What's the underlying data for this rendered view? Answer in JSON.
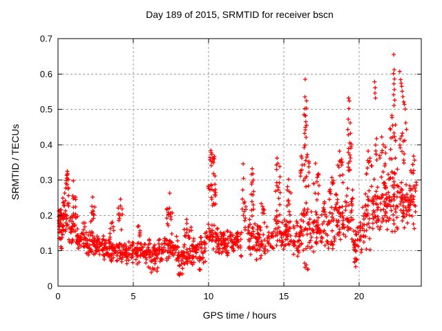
{
  "chart_data": {
    "type": "scatter",
    "title": "Day 189 of 2015, SRMTID for receiver bscn",
    "xlabel": "GPS time / hours",
    "ylabel": "SRMTID / TECUs",
    "xlim": [
      0,
      24.13
    ],
    "ylim": [
      0,
      0.7
    ],
    "xticks": [
      0,
      5,
      10,
      15,
      20
    ],
    "yticks": [
      0,
      0.1,
      0.2,
      0.3,
      0.4,
      0.5,
      0.6,
      0.7
    ],
    "grid": true,
    "legend_position": "none",
    "marker": "plus",
    "marker_color": "#ff0000",
    "axis_color": "#000000",
    "grid_color": "#999999",
    "background_color": "#ffffff",
    "seed": 20150189,
    "band_segments": [
      [
        0.0,
        0.35,
        0.09,
        0.22,
        26
      ],
      [
        0.05,
        0.5,
        0.13,
        0.27,
        20
      ],
      [
        0.3,
        0.8,
        0.12,
        0.3,
        28
      ],
      [
        0.5,
        0.72,
        0.26,
        0.325,
        9
      ],
      [
        0.8,
        1.3,
        0.1,
        0.22,
        34
      ],
      [
        0.95,
        1.2,
        0.19,
        0.27,
        9
      ],
      [
        1.3,
        1.8,
        0.09,
        0.19,
        30
      ],
      [
        1.8,
        2.5,
        0.08,
        0.16,
        40
      ],
      [
        2.15,
        2.45,
        0.15,
        0.25,
        12
      ],
      [
        2.5,
        3.2,
        0.07,
        0.15,
        44
      ],
      [
        3.2,
        4.0,
        0.065,
        0.14,
        48
      ],
      [
        3.45,
        3.7,
        0.13,
        0.2,
        7
      ],
      [
        4.0,
        4.3,
        0.14,
        0.245,
        10
      ],
      [
        4.0,
        5.0,
        0.058,
        0.13,
        55
      ],
      [
        5.0,
        6.0,
        0.06,
        0.13,
        55
      ],
      [
        5.25,
        5.5,
        0.125,
        0.185,
        6
      ],
      [
        6.0,
        7.0,
        0.058,
        0.135,
        55
      ],
      [
        6.0,
        6.8,
        0.035,
        0.058,
        8
      ],
      [
        7.0,
        8.0,
        0.065,
        0.15,
        55
      ],
      [
        7.2,
        7.6,
        0.14,
        0.25,
        14
      ],
      [
        8.0,
        9.0,
        0.045,
        0.125,
        55
      ],
      [
        8.35,
        8.9,
        0.12,
        0.2,
        13
      ],
      [
        7.9,
        8.6,
        0.025,
        0.045,
        6
      ],
      [
        9.0,
        9.8,
        0.055,
        0.15,
        45
      ],
      [
        9.3,
        9.55,
        0.038,
        0.055,
        4
      ],
      [
        9.8,
        10.6,
        0.09,
        0.2,
        40
      ],
      [
        9.95,
        10.5,
        0.19,
        0.335,
        22
      ],
      [
        10.05,
        10.42,
        0.33,
        0.385,
        10
      ],
      [
        10.6,
        11.5,
        0.07,
        0.165,
        52
      ],
      [
        11.5,
        12.2,
        0.07,
        0.17,
        42
      ],
      [
        12.2,
        12.6,
        0.14,
        0.26,
        12
      ],
      [
        12.6,
        13.1,
        0.08,
        0.2,
        30
      ],
      [
        12.75,
        13.05,
        0.19,
        0.33,
        12
      ],
      [
        13.1,
        14.3,
        0.07,
        0.185,
        62
      ],
      [
        13.45,
        13.7,
        0.18,
        0.25,
        7
      ],
      [
        14.3,
        14.85,
        0.09,
        0.22,
        26
      ],
      [
        14.45,
        14.78,
        0.21,
        0.355,
        12
      ],
      [
        14.85,
        15.6,
        0.09,
        0.21,
        40
      ],
      [
        15.15,
        15.5,
        0.2,
        0.3,
        9
      ],
      [
        15.6,
        16.05,
        0.08,
        0.185,
        22
      ],
      [
        16.0,
        16.85,
        0.08,
        0.25,
        46
      ],
      [
        16.1,
        16.7,
        0.24,
        0.42,
        20
      ],
      [
        16.3,
        16.58,
        0.42,
        0.545,
        8
      ],
      [
        16.38,
        16.62,
        0.04,
        0.068,
        5
      ],
      [
        16.85,
        17.6,
        0.09,
        0.225,
        40
      ],
      [
        16.95,
        17.35,
        0.22,
        0.345,
        11
      ],
      [
        17.6,
        18.4,
        0.1,
        0.25,
        42
      ],
      [
        17.95,
        18.35,
        0.24,
        0.335,
        9
      ],
      [
        18.4,
        19.2,
        0.1,
        0.28,
        46
      ],
      [
        18.55,
        18.95,
        0.27,
        0.385,
        10
      ],
      [
        19.2,
        19.6,
        0.12,
        0.3,
        24
      ],
      [
        19.25,
        19.5,
        0.29,
        0.475,
        14
      ],
      [
        19.6,
        20.2,
        0.08,
        0.21,
        32
      ],
      [
        19.65,
        20.05,
        0.05,
        0.085,
        8
      ],
      [
        20.2,
        21.0,
        0.1,
        0.3,
        46
      ],
      [
        20.4,
        20.85,
        0.29,
        0.385,
        9
      ],
      [
        21.0,
        21.8,
        0.13,
        0.33,
        50
      ],
      [
        21.0,
        21.18,
        0.33,
        0.46,
        6
      ],
      [
        21.35,
        21.8,
        0.32,
        0.425,
        9
      ],
      [
        21.8,
        22.6,
        0.14,
        0.35,
        56
      ],
      [
        22.0,
        22.45,
        0.34,
        0.52,
        16
      ],
      [
        22.6,
        23.3,
        0.15,
        0.33,
        42
      ],
      [
        22.65,
        23.05,
        0.33,
        0.48,
        11
      ],
      [
        23.2,
        23.85,
        0.15,
        0.31,
        30
      ],
      [
        23.25,
        23.8,
        0.3,
        0.375,
        8
      ]
    ],
    "feature_points": [
      0.62,
      0.325,
      0.58,
      0.313,
      0.66,
      0.302,
      0.6,
      0.287,
      0.69,
      0.278,
      1.02,
      0.298,
      2.3,
      0.252,
      4.15,
      0.246,
      7.42,
      0.263,
      10.15,
      0.384,
      10.22,
      0.373,
      10.27,
      0.362,
      10.1,
      0.357,
      10.32,
      0.349,
      10.18,
      0.341,
      12.3,
      0.346,
      12.32,
      0.305,
      12.27,
      0.272,
      12.9,
      0.332,
      12.85,
      0.316,
      14.55,
      0.362,
      14.6,
      0.347,
      14.52,
      0.33,
      15.32,
      0.302,
      16.42,
      0.585,
      16.4,
      0.502,
      16.46,
      0.465,
      16.51,
      0.455,
      16.38,
      0.432,
      16.48,
      0.421,
      16.35,
      0.392,
      16.56,
      0.372,
      17.1,
      0.347,
      18.7,
      0.382,
      19.3,
      0.532,
      19.35,
      0.524,
      19.32,
      0.502,
      19.28,
      0.472,
      19.41,
      0.462,
      19.25,
      0.443,
      19.43,
      0.432,
      19.38,
      0.405,
      20.6,
      0.382,
      21.03,
      0.578,
      21.07,
      0.561,
      21.05,
      0.546,
      21.09,
      0.532,
      21.5,
      0.422,
      22.3,
      0.655,
      22.33,
      0.612,
      22.28,
      0.601,
      22.35,
      0.586,
      22.31,
      0.572,
      22.34,
      0.556,
      22.29,
      0.541,
      22.37,
      0.526,
      22.32,
      0.511,
      22.7,
      0.607,
      22.76,
      0.584,
      22.79,
      0.574,
      22.83,
      0.565,
      22.86,
      0.551,
      22.91,
      0.536,
      22.96,
      0.521,
      23.01,
      0.514,
      23.06,
      0.501,
      23.1,
      0.462,
      23.15,
      0.443
    ]
  }
}
